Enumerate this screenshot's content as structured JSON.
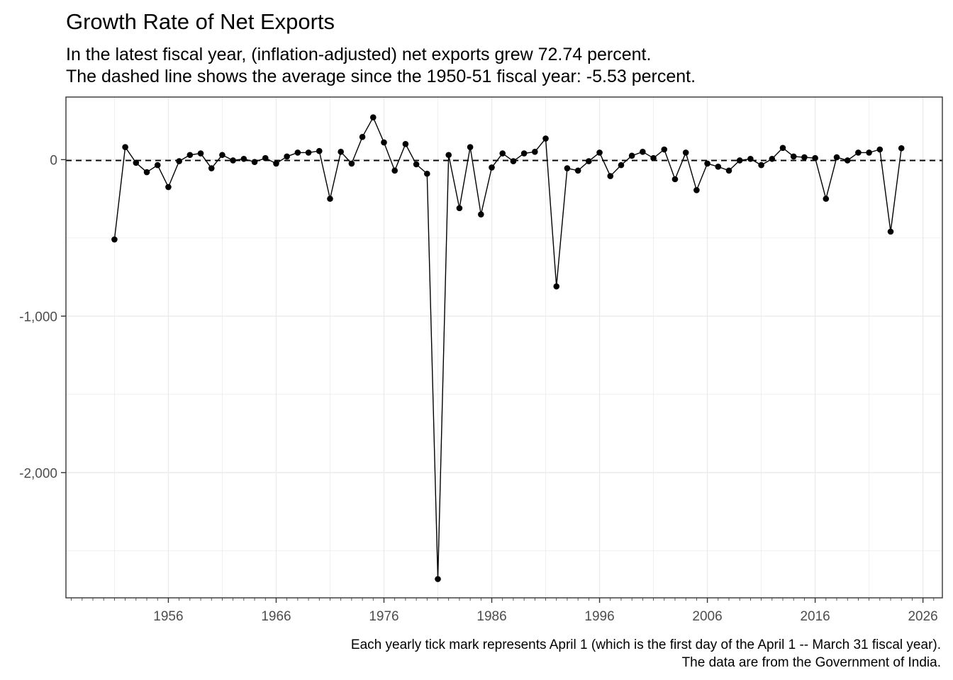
{
  "chart_data": {
    "type": "line",
    "title": "Growth Rate of Net Exports",
    "subtitle_lines": [
      "In the latest fiscal year, (inflation-adjusted) net exports grew 72.74 percent.",
      "The dashed line shows the average since the 1950-51 fiscal year: -5.53 percent."
    ],
    "caption_lines": [
      "Each yearly tick mark represents April 1 (which is the first day of the April 1 -- March 31 fiscal year).",
      "The data are from the Government of India."
    ],
    "xlabel": "",
    "ylabel": "",
    "average_line": -5.53,
    "xlim": [
      1946.5,
      2027.8
    ],
    "ylim": [
      -2800,
      400
    ],
    "x_ticks": [
      1956,
      1966,
      1976,
      1986,
      1996,
      2006,
      2016,
      2026
    ],
    "x_tick_labels": [
      "1956",
      "1966",
      "1976",
      "1986",
      "1996",
      "2006",
      "2016",
      "2026"
    ],
    "y_ticks": [
      0,
      -1000,
      -2000
    ],
    "y_tick_labels": [
      "0",
      "-1,000",
      "-2,000"
    ],
    "series": [
      {
        "name": "Net exports growth rate",
        "x": [
          1951,
          1952,
          1953,
          1954,
          1955,
          1956,
          1957,
          1958,
          1959,
          1960,
          1961,
          1962,
          1963,
          1964,
          1965,
          1966,
          1967,
          1968,
          1969,
          1970,
          1971,
          1972,
          1973,
          1974,
          1975,
          1976,
          1977,
          1978,
          1979,
          1980,
          1981,
          1982,
          1983,
          1984,
          1985,
          1986,
          1987,
          1988,
          1989,
          1990,
          1991,
          1992,
          1993,
          1994,
          1995,
          1996,
          1997,
          1998,
          1999,
          2000,
          2001,
          2002,
          2003,
          2004,
          2005,
          2006,
          2007,
          2008,
          2009,
          2010,
          2011,
          2012,
          2013,
          2014,
          2015,
          2016,
          2017,
          2018,
          2019,
          2020,
          2021,
          2022,
          2023,
          2024
        ],
        "values": [
          -510,
          80,
          -20,
          -80,
          -35,
          -175,
          -10,
          30,
          40,
          -55,
          30,
          -5,
          5,
          -15,
          10,
          -25,
          20,
          45,
          45,
          55,
          -250,
          50,
          -25,
          145,
          270,
          110,
          -70,
          100,
          -30,
          -90,
          -2680,
          30,
          -310,
          80,
          -350,
          -50,
          40,
          -10,
          40,
          50,
          135,
          -810,
          -55,
          -70,
          -10,
          45,
          -105,
          -35,
          25,
          50,
          10,
          65,
          -125,
          45,
          -195,
          -25,
          -45,
          -70,
          -5,
          5,
          -35,
          5,
          75,
          20,
          15,
          10,
          -250,
          15,
          -5,
          45,
          45,
          65,
          -460,
          73
        ]
      }
    ]
  }
}
